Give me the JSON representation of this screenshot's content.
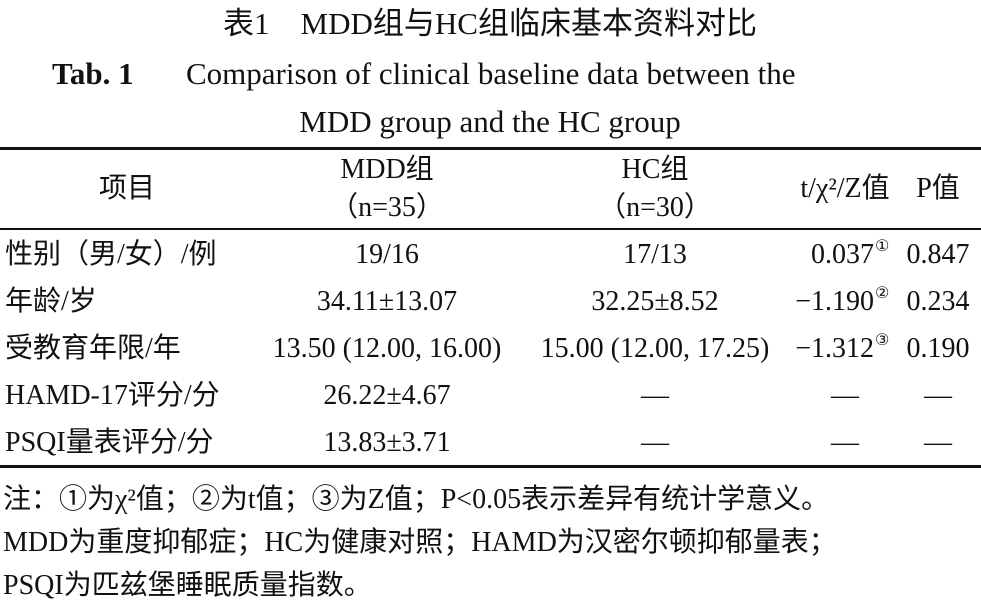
{
  "title": {
    "cn": "表1　MDD组与HC组临床基本资料对比",
    "en_label": "Tab. 1",
    "en_lines": [
      "Comparison of clinical baseline data between the",
      "MDD group and the HC group"
    ]
  },
  "table": {
    "header": [
      [
        "项目"
      ],
      [
        "MDD组",
        "（n=35）"
      ],
      [
        "HC组",
        "（n=30）"
      ],
      [
        "t/χ²/Z值"
      ],
      [
        "P值"
      ]
    ],
    "rows": [
      [
        "性别（男/女）/例",
        "19/16",
        "17/13",
        {
          "text": "0.037",
          "mark": "①"
        },
        "0.847"
      ],
      [
        "年龄/岁",
        "34.11±13.07",
        "32.25±8.52",
        {
          "text": "−1.190",
          "mark": "②"
        },
        "0.234"
      ],
      [
        "受教育年限/年",
        "13.50 (12.00, 16.00)",
        "15.00 (12.00, 17.25)",
        {
          "text": "−1.312",
          "mark": "③"
        },
        "0.190"
      ],
      [
        "HAMD-17评分/分",
        "26.22±4.67",
        "—",
        "—",
        "—"
      ],
      [
        "PSQI量表评分/分",
        "13.83±3.71",
        "—",
        "—",
        "—"
      ]
    ]
  },
  "note": [
    "注：①为χ²值；②为t值；③为Z值；P<0.05表示差异有统计学意义。",
    "MDD为重度抑郁症；HC为健康对照；HAMD为汉密尔顿抑郁量表；",
    "PSQI为匹兹堡睡眠质量指数。"
  ]
}
